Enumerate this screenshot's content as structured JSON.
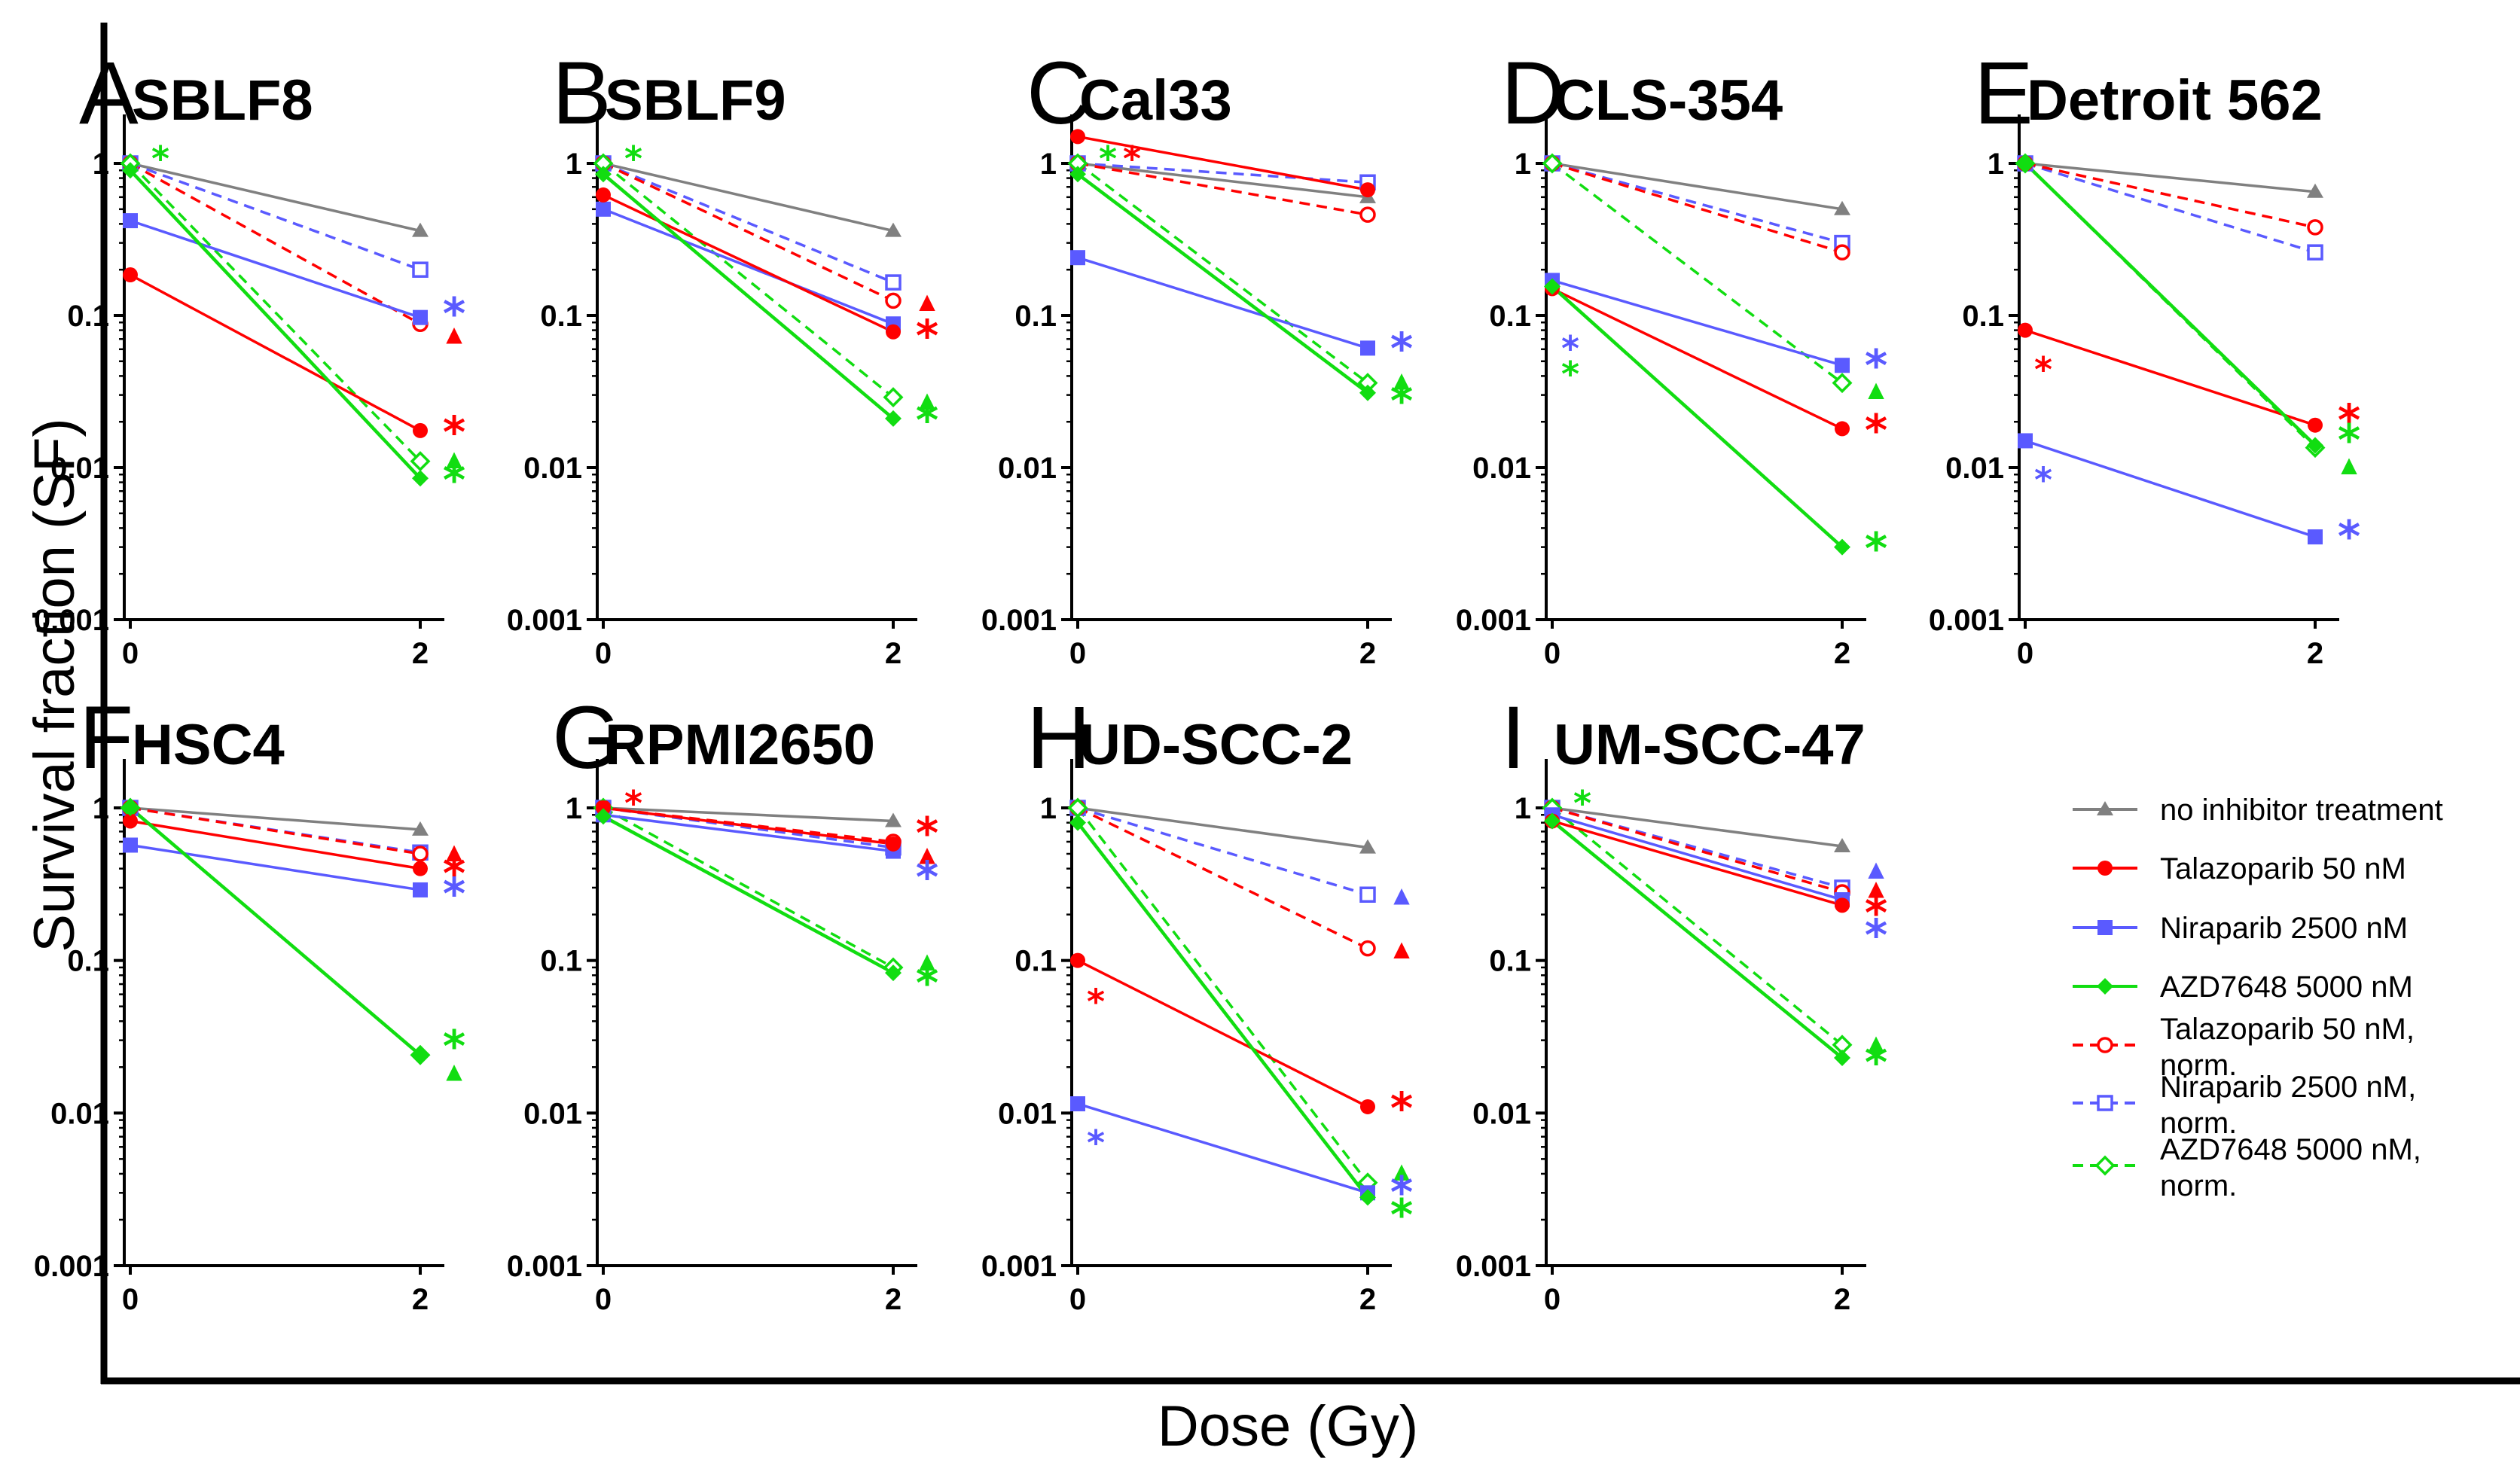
{
  "chart_data": {
    "type": "line",
    "scale": "log",
    "ylabel": "Survival fraction (SF)",
    "xlabel": "Dose (Gy)",
    "ylim": [
      0.001,
      1
    ],
    "y_ticks": [
      "0.001",
      "0.01",
      "0.1",
      "1"
    ],
    "x_ticks": [
      "0",
      "2"
    ],
    "x": [
      0,
      2
    ],
    "colors": {
      "none": "#808080",
      "tala": "#ff0000",
      "nira": "#5a5aff",
      "azd": "#11dd11"
    },
    "legend": [
      {
        "key": "none",
        "label": "no inhibitor treatment",
        "style": "solid",
        "marker": "triangle"
      },
      {
        "key": "tala",
        "label": "Talazoparib 50 nM",
        "style": "solid",
        "marker": "circle"
      },
      {
        "key": "nira",
        "label": "Niraparib 2500 nM",
        "style": "solid",
        "marker": "square"
      },
      {
        "key": "azd",
        "label": "AZD7648 5000 nM",
        "style": "solid",
        "marker": "diamond"
      },
      {
        "key": "tala",
        "label": "Talazoparib 50 nM,",
        "label2": "norm.",
        "style": "dashed",
        "marker": "circle-open"
      },
      {
        "key": "nira",
        "label": "Niraparib 2500 nM,",
        "label2": "norm.",
        "style": "dashed",
        "marker": "square-open"
      },
      {
        "key": "azd",
        "label": "AZD7648 5000 nM,",
        "label2": "norm.",
        "style": "dashed",
        "marker": "diamond-open"
      }
    ],
    "panels": [
      {
        "letter": "A",
        "title": "SBLF8",
        "series": {
          "none": [
            1,
            0.36
          ],
          "tala": [
            0.185,
            0.0175
          ],
          "nira": [
            0.42,
            0.097
          ],
          "azd": [
            0.9,
            0.0085
          ],
          "tala_norm": [
            1,
            0.088
          ],
          "nira_norm": [
            1,
            0.2
          ],
          "azd_norm": [
            1,
            0.011
          ]
        },
        "sig0": [
          {
            "c": "azd",
            "s": "*"
          }
        ],
        "sig2": [
          {
            "c": "nira",
            "s": "*",
            "v": 0.105
          },
          {
            "c": "tala",
            "s": "▲",
            "v": 0.076
          },
          {
            "c": "tala",
            "s": "*",
            "v": 0.0175
          },
          {
            "c": "azd",
            "s": "▲",
            "v": 0.0115
          },
          {
            "c": "azd",
            "s": "*",
            "v": 0.0085
          }
        ]
      },
      {
        "letter": "B",
        "title": "SBLF9",
        "series": {
          "none": [
            1,
            0.36
          ],
          "tala": [
            0.62,
            0.078
          ],
          "nira": [
            0.5,
            0.088
          ],
          "azd": [
            0.85,
            0.021
          ],
          "tala_norm": [
            1,
            0.125
          ],
          "nira_norm": [
            1,
            0.165
          ],
          "azd_norm": [
            1,
            0.029
          ]
        },
        "sig0": [
          {
            "c": "azd",
            "s": "*"
          }
        ],
        "sig2": [
          {
            "c": "tala",
            "s": "▲",
            "v": 0.125
          },
          {
            "c": "tala",
            "s": "*",
            "v": 0.075
          },
          {
            "c": "azd",
            "s": "▲",
            "v": 0.028
          },
          {
            "c": "azd",
            "s": "*",
            "v": 0.021
          }
        ]
      },
      {
        "letter": "C",
        "title": "Cal33",
        "series": {
          "none": [
            1,
            0.6
          ],
          "tala": [
            1.5,
            0.67
          ],
          "nira": [
            0.24,
            0.061
          ],
          "azd": [
            0.85,
            0.031
          ],
          "tala_norm": [
            1,
            0.46
          ],
          "nira_norm": [
            1,
            0.75
          ],
          "azd_norm": [
            1,
            0.036
          ]
        },
        "sig0": [
          {
            "c": "azd",
            "s": "*"
          },
          {
            "c": "tala",
            "s": "*"
          }
        ],
        "sig2": [
          {
            "c": "nira",
            "s": "*",
            "v": 0.062
          },
          {
            "c": "azd",
            "s": "▲",
            "v": 0.038
          },
          {
            "c": "azd",
            "s": "*",
            "v": 0.028
          }
        ]
      },
      {
        "letter": "D",
        "title": "CLS-354",
        "series": {
          "none": [
            1,
            0.5
          ],
          "tala": [
            0.15,
            0.018
          ],
          "nira": [
            0.17,
            0.047
          ],
          "azd": [
            0.155,
            0.003
          ],
          "tala_norm": [
            1,
            0.26
          ],
          "nira_norm": [
            1,
            0.3
          ],
          "azd_norm": [
            1,
            0.036
          ]
        },
        "sig0": [
          {
            "c": "nira",
            "s": "*",
            "v": 0.062
          },
          {
            "c": "azd",
            "s": "*",
            "v": 0.042
          }
        ],
        "sig2": [
          {
            "c": "nira",
            "s": "*",
            "v": 0.048
          },
          {
            "c": "azd",
            "s": "▲",
            "v": 0.033
          },
          {
            "c": "tala",
            "s": "*",
            "v": 0.018
          },
          {
            "c": "azd",
            "s": "*",
            "v": 0.003
          }
        ]
      },
      {
        "letter": "E",
        "title": "Detroit 562",
        "series": {
          "none": [
            1,
            0.65
          ],
          "tala": [
            0.08,
            0.019
          ],
          "nira": [
            0.015,
            0.0035
          ],
          "azd": [
            1,
            0.014
          ],
          "tala_norm": [
            1,
            0.38
          ],
          "nira_norm": [
            1,
            0.26
          ],
          "azd_norm": [
            1,
            0.0135
          ]
        },
        "sig0": [
          {
            "c": "tala",
            "s": "*",
            "v": 0.045
          },
          {
            "c": "nira",
            "s": "*",
            "v": 0.0085
          }
        ],
        "sig2": [
          {
            "c": "tala",
            "s": "*",
            "v": 0.021
          },
          {
            "c": "azd",
            "s": "*",
            "v": 0.0155
          },
          {
            "c": "azd",
            "s": "▲",
            "v": 0.0105
          },
          {
            "c": "nira",
            "s": "*",
            "v": 0.0036
          }
        ]
      },
      {
        "letter": "F",
        "title": "HSC4",
        "series": {
          "none": [
            1,
            0.72
          ],
          "tala": [
            0.82,
            0.4
          ],
          "nira": [
            0.57,
            0.29
          ],
          "azd": [
            1,
            0.024
          ],
          "tala_norm": [
            1,
            0.5
          ],
          "nira_norm": [
            1,
            0.51
          ],
          "azd_norm": [
            1,
            0.024
          ]
        },
        "sig0": [],
        "sig2": [
          {
            "c": "tala",
            "s": "▲",
            "v": 0.52
          },
          {
            "c": "tala",
            "s": "*",
            "v": 0.38
          },
          {
            "c": "nira",
            "s": "*",
            "v": 0.28
          },
          {
            "c": "azd",
            "s": "*",
            "v": 0.028
          },
          {
            "c": "azd",
            "s": "▲",
            "v": 0.019
          }
        ]
      },
      {
        "letter": "G",
        "title": "RPMI2650",
        "series": {
          "none": [
            1,
            0.82
          ],
          "tala": [
            1,
            0.58
          ],
          "nira": [
            0.9,
            0.52
          ],
          "azd": [
            0.88,
            0.083
          ],
          "tala_norm": [
            1,
            0.6
          ],
          "nira_norm": [
            1,
            0.55
          ],
          "azd_norm": [
            1,
            0.09
          ]
        },
        "sig0": [
          {
            "c": "tala",
            "s": "*"
          }
        ],
        "sig2": [
          {
            "c": "tala",
            "s": "*",
            "v": 0.7
          },
          {
            "c": "tala",
            "s": "▲",
            "v": 0.5
          },
          {
            "c": "nira",
            "s": "*",
            "v": 0.36
          },
          {
            "c": "azd",
            "s": "▲",
            "v": 0.1
          },
          {
            "c": "azd",
            "s": "*",
            "v": 0.073
          }
        ]
      },
      {
        "letter": "H",
        "title": "UD-SCC-2",
        "series": {
          "none": [
            1,
            0.55
          ],
          "tala": [
            0.1,
            0.011
          ],
          "nira": [
            0.0115,
            0.003
          ],
          "azd": [
            0.8,
            0.0028
          ],
          "tala_norm": [
            1,
            0.12
          ],
          "nira_norm": [
            1,
            0.27
          ],
          "azd_norm": [
            1,
            0.0035
          ]
        },
        "sig0": [
          {
            "c": "tala",
            "s": "*",
            "v": 0.055
          },
          {
            "c": "nira",
            "s": "*",
            "v": 0.0065
          }
        ],
        "sig2": [
          {
            "c": "nira",
            "s": "▲",
            "v": 0.27
          },
          {
            "c": "tala",
            "s": "▲",
            "v": 0.12
          },
          {
            "c": "tala",
            "s": "*",
            "v": 0.011
          },
          {
            "c": "azd",
            "s": "▲",
            "v": 0.0042
          },
          {
            "c": "nira",
            "s": "*",
            "v": 0.0031
          },
          {
            "c": "azd",
            "s": "*",
            "v": 0.0022
          }
        ]
      },
      {
        "letter": "I",
        "title": "UM-SCC-47",
        "series": {
          "none": [
            1,
            0.56
          ],
          "tala": [
            0.82,
            0.23
          ],
          "nira": [
            0.9,
            0.25
          ],
          "azd": [
            0.82,
            0.023
          ],
          "tala_norm": [
            1,
            0.28
          ],
          "nira_norm": [
            1,
            0.3
          ],
          "azd_norm": [
            1,
            0.028
          ]
        },
        "sig0": [
          {
            "c": "azd",
            "s": "*"
          }
        ],
        "sig2": [
          {
            "c": "nira",
            "s": "▲",
            "v": 0.4
          },
          {
            "c": "tala",
            "s": "▲",
            "v": 0.3
          },
          {
            "c": "tala",
            "s": "*",
            "v": 0.21
          },
          {
            "c": "nira",
            "s": "*",
            "v": 0.15
          },
          {
            "c": "azd",
            "s": "▲",
            "v": 0.029
          },
          {
            "c": "azd",
            "s": "*",
            "v": 0.022
          }
        ]
      }
    ]
  }
}
